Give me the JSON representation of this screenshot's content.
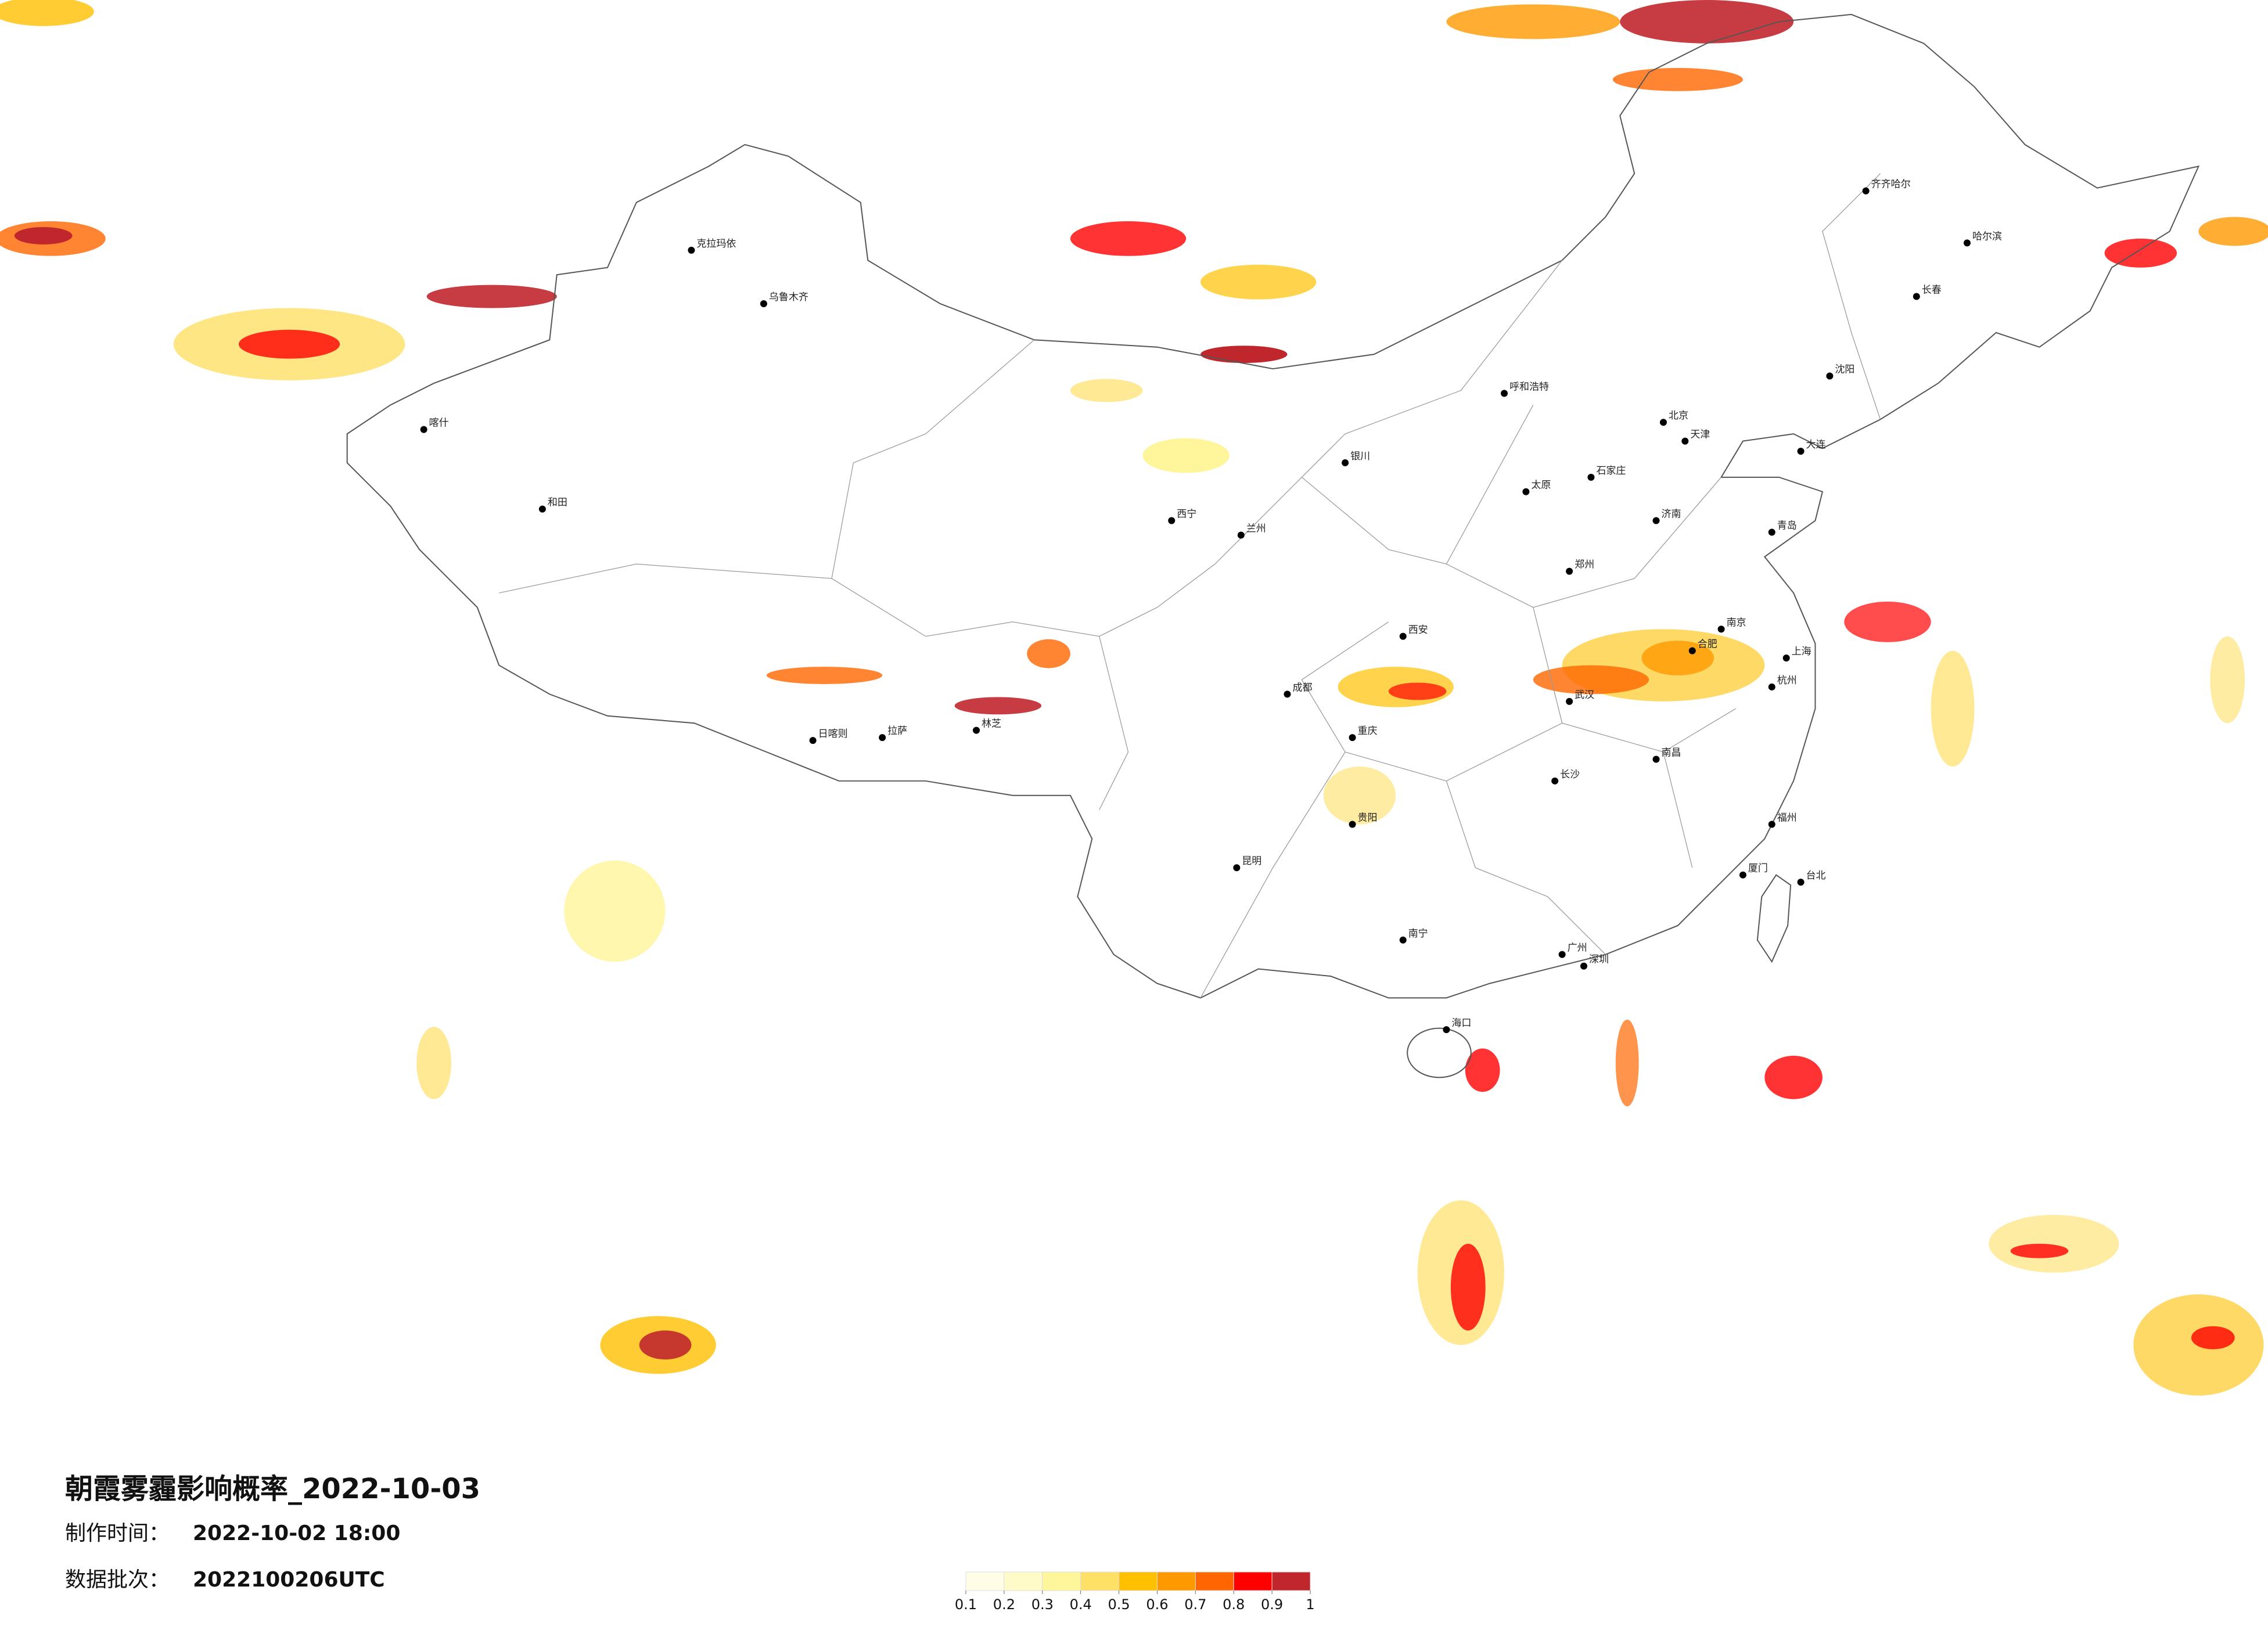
{
  "title": "朝霞雾霾影响概率_2022-10-03",
  "info": [
    {
      "label": "制作时间：",
      "value": "2022-10-02 18:00"
    },
    {
      "label": "数据批次：",
      "value": "2022100206UTC"
    }
  ],
  "legend": {
    "ticks": [
      0.1,
      0.2,
      0.3,
      0.4,
      0.5,
      0.6,
      0.7,
      0.8,
      0.9,
      1
    ],
    "colors": [
      "#fffde6",
      "#fffbc8",
      "#fff59a",
      "#ffe066",
      "#ffc000",
      "#ff9900",
      "#ff6600",
      "#ff0000",
      "#c0272d"
    ]
  },
  "cities": [
    "北京",
    "天津",
    "上海",
    "重庆",
    "广州",
    "深圳",
    "武汉",
    "成都",
    "西安",
    "乌鲁木齐",
    "拉萨",
    "哈尔滨",
    "长春",
    "沈阳",
    "呼和浩特",
    "兰州",
    "西宁",
    "银川",
    "太原",
    "石家庄",
    "济南",
    "郑州",
    "合肥",
    "南京",
    "杭州",
    "福州",
    "南昌",
    "长沙",
    "贵阳",
    "昆明",
    "南宁",
    "海口",
    "台北",
    "喀什",
    "和田",
    "克拉玛依",
    "齐齐哈尔",
    "大连",
    "青岛",
    "厦门",
    "日喀则",
    "林芝"
  ]
}
